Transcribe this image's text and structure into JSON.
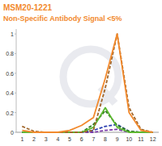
{
  "chart_data": {
    "type": "line",
    "title": "MSM20-1221",
    "subtitle": "Non-Specific Antibody Signal <5%",
    "categories": [
      "1",
      "2",
      "3",
      "4",
      "5",
      "6",
      "7",
      "8",
      "9",
      "10",
      "11",
      "12"
    ],
    "series": [
      {
        "color": "#f28a2e",
        "line_style": "solid",
        "values": [
          0.02,
          0,
          0,
          0,
          0.02,
          0.07,
          0.15,
          0.55,
          1.0,
          0.2,
          0.02,
          0
        ]
      },
      {
        "color": "#a0662a",
        "line_style": "dashed",
        "values": [
          0.06,
          0.01,
          0,
          0,
          0,
          0,
          0.02,
          0.45,
          1.0,
          0.25,
          0.03,
          0
        ]
      },
      {
        "color": "#5cb830",
        "line_style": "solid",
        "values": [
          0,
          0,
          0,
          0,
          0,
          0,
          0.05,
          0.25,
          0.05,
          0,
          0,
          0
        ]
      },
      {
        "color": "#2f7a1f",
        "line_style": "dashed",
        "values": [
          0,
          0,
          0,
          0,
          0,
          0,
          0.08,
          0.22,
          0.07,
          0.01,
          0,
          0
        ]
      },
      {
        "color": "#2b3fb0",
        "line_style": "dashed",
        "values": [
          0,
          0,
          0,
          0,
          0,
          0,
          0.02,
          0.06,
          0.08,
          0.01,
          0,
          0
        ]
      },
      {
        "color": "#7a3aa8",
        "line_style": "dashed",
        "values": [
          0,
          0,
          0,
          0,
          0,
          0,
          0,
          0.02,
          0.03,
          0,
          0,
          0
        ]
      }
    ],
    "ylim": [
      0,
      1.05
    ],
    "yticks": [
      0,
      0.2,
      0.4,
      0.6,
      0.8,
      1
    ],
    "grid": false
  }
}
